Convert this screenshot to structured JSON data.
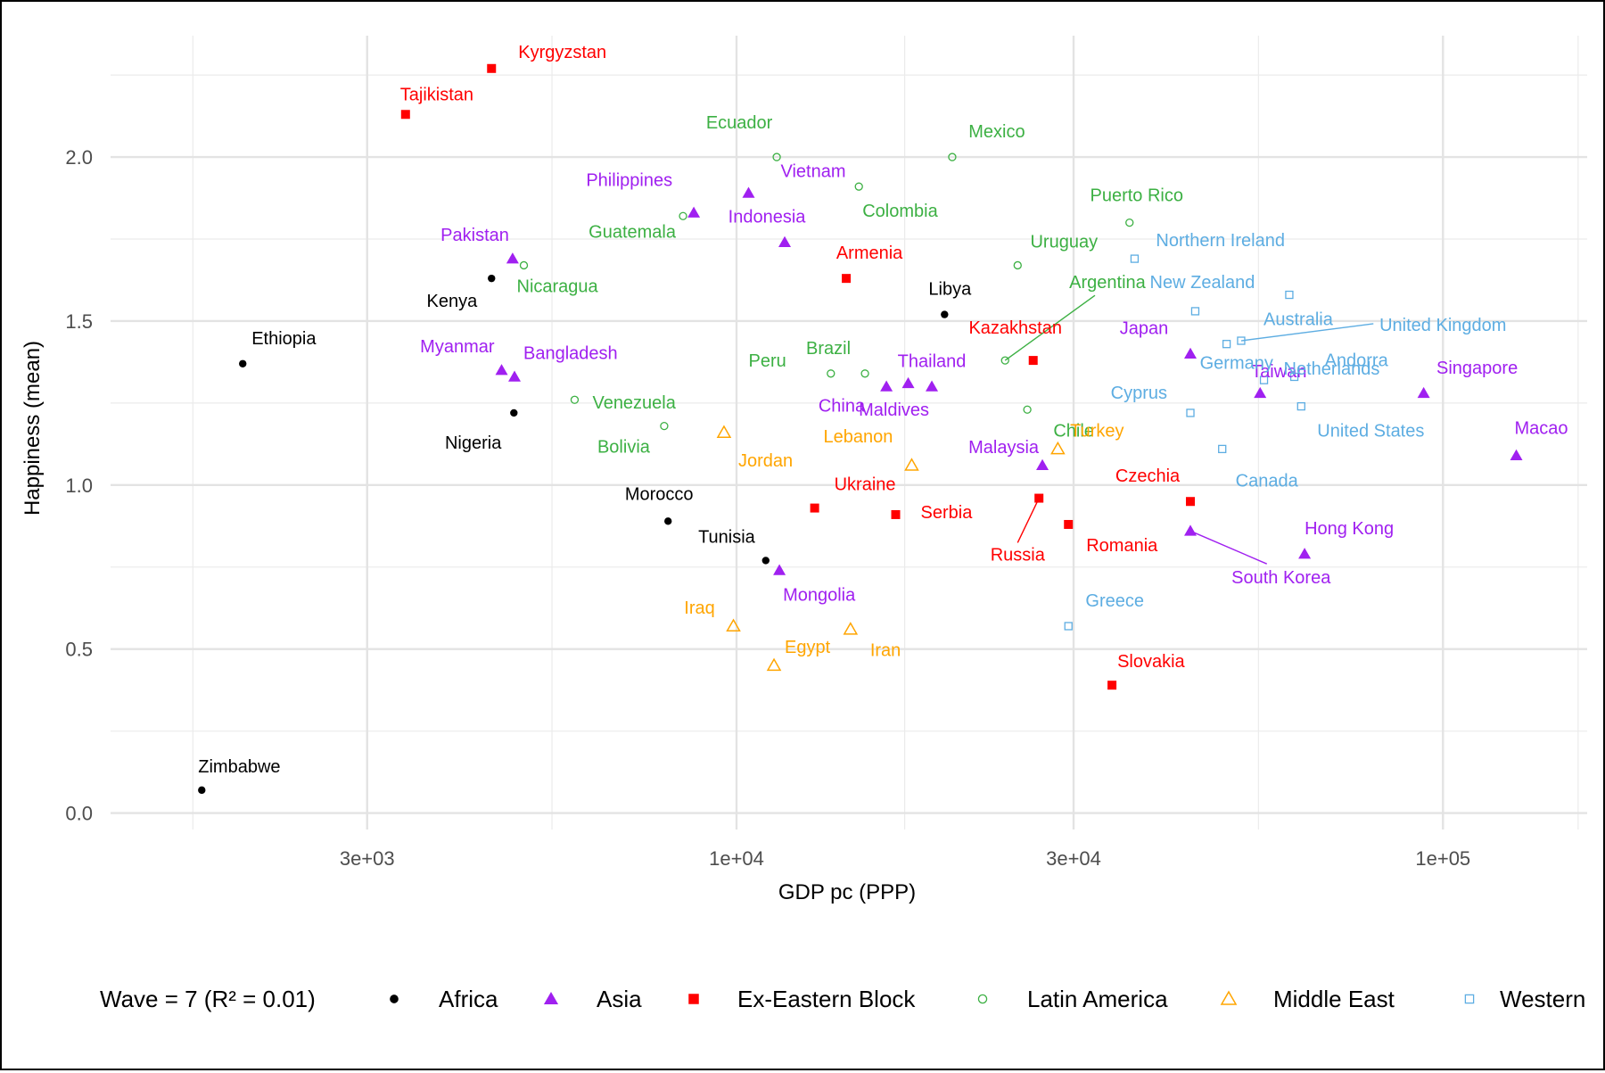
{
  "chart_data": {
    "type": "scatter",
    "title": "",
    "xlabel": "GDP pc (PPP)",
    "ylabel": "Happiness (mean)",
    "x_scale": "log10",
    "xlim": [
      1300,
      160000
    ],
    "ylim": [
      -0.05,
      2.37
    ],
    "x_ticks": [
      {
        "value": 3000,
        "label": "3e+03"
      },
      {
        "value": 10000,
        "label": "1e+04"
      },
      {
        "value": 30000,
        "label": "3e+04"
      },
      {
        "value": 100000,
        "label": "1e+05"
      }
    ],
    "y_ticks": [
      {
        "value": 0.0,
        "label": "0.0"
      },
      {
        "value": 0.5,
        "label": "0.5"
      },
      {
        "value": 1.0,
        "label": "1.0"
      },
      {
        "value": 1.5,
        "label": "1.5"
      },
      {
        "value": 2.0,
        "label": "2.0"
      }
    ],
    "grid": true,
    "legend": {
      "position": "bottom",
      "title": "Wave = 7 (R² = 0.01)",
      "entries": [
        {
          "name": "Africa",
          "color": "#000000",
          "shape": "dot"
        },
        {
          "name": "Asia",
          "color": "#A020F0",
          "shape": "triangle-filled"
        },
        {
          "name": "Ex-Eastern Block",
          "color": "#FF0000",
          "shape": "square-filled"
        },
        {
          "name": "Latin America",
          "color": "#3CB043",
          "shape": "circle-open"
        },
        {
          "name": "Middle East",
          "color": "#FFA500",
          "shape": "triangle-open"
        },
        {
          "name": "Western",
          "color": "#5DADE2",
          "shape": "square-open"
        }
      ]
    },
    "series": [
      {
        "name": "Africa",
        "points": [
          {
            "label": "Zimbabwe",
            "x": 1750,
            "y": 0.07
          },
          {
            "label": "Ethiopia",
            "x": 2000,
            "y": 1.37
          },
          {
            "label": "Kenya",
            "x": 4500,
            "y": 1.63
          },
          {
            "label": "Nigeria",
            "x": 4840,
            "y": 1.22
          },
          {
            "label": "Morocco",
            "x": 8000,
            "y": 0.89
          },
          {
            "label": "Tunisia",
            "x": 11000,
            "y": 0.77
          },
          {
            "label": "Libya",
            "x": 19700,
            "y": 1.52
          }
        ]
      },
      {
        "name": "Asia",
        "points": [
          {
            "label": "Myanmar",
            "x": 4650,
            "y": 1.35
          },
          {
            "label": "Pakistan",
            "x": 4820,
            "y": 1.69
          },
          {
            "label": "Bangladesh",
            "x": 4850,
            "y": 1.33
          },
          {
            "label": "Philippines",
            "x": 8700,
            "y": 1.83
          },
          {
            "label": "Vietnam",
            "x": 10400,
            "y": 1.89
          },
          {
            "label": "Indonesia",
            "x": 11700,
            "y": 1.74
          },
          {
            "label": "Mongolia",
            "x": 11500,
            "y": 0.74
          },
          {
            "label": "China",
            "x": 16300,
            "y": 1.3
          },
          {
            "label": "Thailand",
            "x": 18900,
            "y": 1.3
          },
          {
            "label": "Maldives",
            "x": 17500,
            "y": 1.31
          },
          {
            "label": "Malaysia",
            "x": 27100,
            "y": 1.06
          },
          {
            "label": "Japan",
            "x": 43900,
            "y": 1.4
          },
          {
            "label": "South Korea",
            "x": 43900,
            "y": 0.86
          },
          {
            "label": "Taiwan",
            "x": 55100,
            "y": 1.28
          },
          {
            "label": "Hong Kong",
            "x": 63700,
            "y": 0.79
          },
          {
            "label": "Singapore",
            "x": 93900,
            "y": 1.28
          },
          {
            "label": "Macao",
            "x": 127000,
            "y": 1.09
          }
        ]
      },
      {
        "name": "Ex-Eastern Block",
        "points": [
          {
            "label": "Tajikistan",
            "x": 3400,
            "y": 2.13
          },
          {
            "label": "Kyrgyzstan",
            "x": 4500,
            "y": 2.27
          },
          {
            "label": "Armenia",
            "x": 14300,
            "y": 1.63
          },
          {
            "label": "Ukraine",
            "x": 12900,
            "y": 0.93
          },
          {
            "label": "Serbia",
            "x": 16800,
            "y": 0.91
          },
          {
            "label": "Kazakhstan",
            "x": 26300,
            "y": 1.38
          },
          {
            "label": "Russia",
            "x": 26800,
            "y": 0.96
          },
          {
            "label": "Romania",
            "x": 29500,
            "y": 0.88
          },
          {
            "label": "Slovakia",
            "x": 34000,
            "y": 0.39
          },
          {
            "label": "Czechia",
            "x": 43900,
            "y": 0.95
          }
        ]
      },
      {
        "name": "Latin America",
        "points": [
          {
            "label": "Nicaragua",
            "x": 5000,
            "y": 1.67
          },
          {
            "label": "Venezuela",
            "x": 5900,
            "y": 1.26
          },
          {
            "label": "Guatemala",
            "x": 8400,
            "y": 1.82
          },
          {
            "label": "Bolivia",
            "x": 7900,
            "y": 1.18
          },
          {
            "label": "Ecuador",
            "x": 11400,
            "y": 2.0
          },
          {
            "label": "Peru",
            "x": 13600,
            "y": 1.34
          },
          {
            "label": "Brazil",
            "x": 15200,
            "y": 1.34
          },
          {
            "label": "Colombia",
            "x": 14900,
            "y": 1.91
          },
          {
            "label": "Mexico",
            "x": 20200,
            "y": 2.0
          },
          {
            "label": "Uruguay",
            "x": 25000,
            "y": 1.67
          },
          {
            "label": "Argentina",
            "x": 24000,
            "y": 1.38
          },
          {
            "label": "Chile",
            "x": 25800,
            "y": 1.23
          },
          {
            "label": "Puerto Rico",
            "x": 36000,
            "y": 1.8
          }
        ]
      },
      {
        "name": "Middle East",
        "points": [
          {
            "label": "Jordan",
            "x": 9600,
            "y": 1.16
          },
          {
            "label": "Iraq",
            "x": 9900,
            "y": 0.57
          },
          {
            "label": "Egypt",
            "x": 11300,
            "y": 0.45
          },
          {
            "label": "Iran",
            "x": 14500,
            "y": 0.56
          },
          {
            "label": "Lebanon",
            "x": 17700,
            "y": 1.06
          },
          {
            "label": "Turkey",
            "x": 28500,
            "y": 1.11
          }
        ]
      },
      {
        "name": "Western",
        "points": [
          {
            "label": "Greece",
            "x": 29500,
            "y": 0.57
          },
          {
            "label": "Northern Ireland",
            "x": 36600,
            "y": 1.69
          },
          {
            "label": "Cyprus",
            "x": 43900,
            "y": 1.22
          },
          {
            "label": "New Zealand",
            "x": 44600,
            "y": 1.53
          },
          {
            "label": "Canada",
            "x": 48700,
            "y": 1.11
          },
          {
            "label": "Germany",
            "x": 49400,
            "y": 1.43
          },
          {
            "label": "United Kingdom",
            "x": 51800,
            "y": 1.44
          },
          {
            "label": "Netherlands",
            "x": 55800,
            "y": 1.32
          },
          {
            "label": "Australia",
            "x": 60600,
            "y": 1.58
          },
          {
            "label": "Andorra",
            "x": 61600,
            "y": 1.33
          },
          {
            "label": "United States",
            "x": 63000,
            "y": 1.24
          }
        ]
      }
    ]
  }
}
